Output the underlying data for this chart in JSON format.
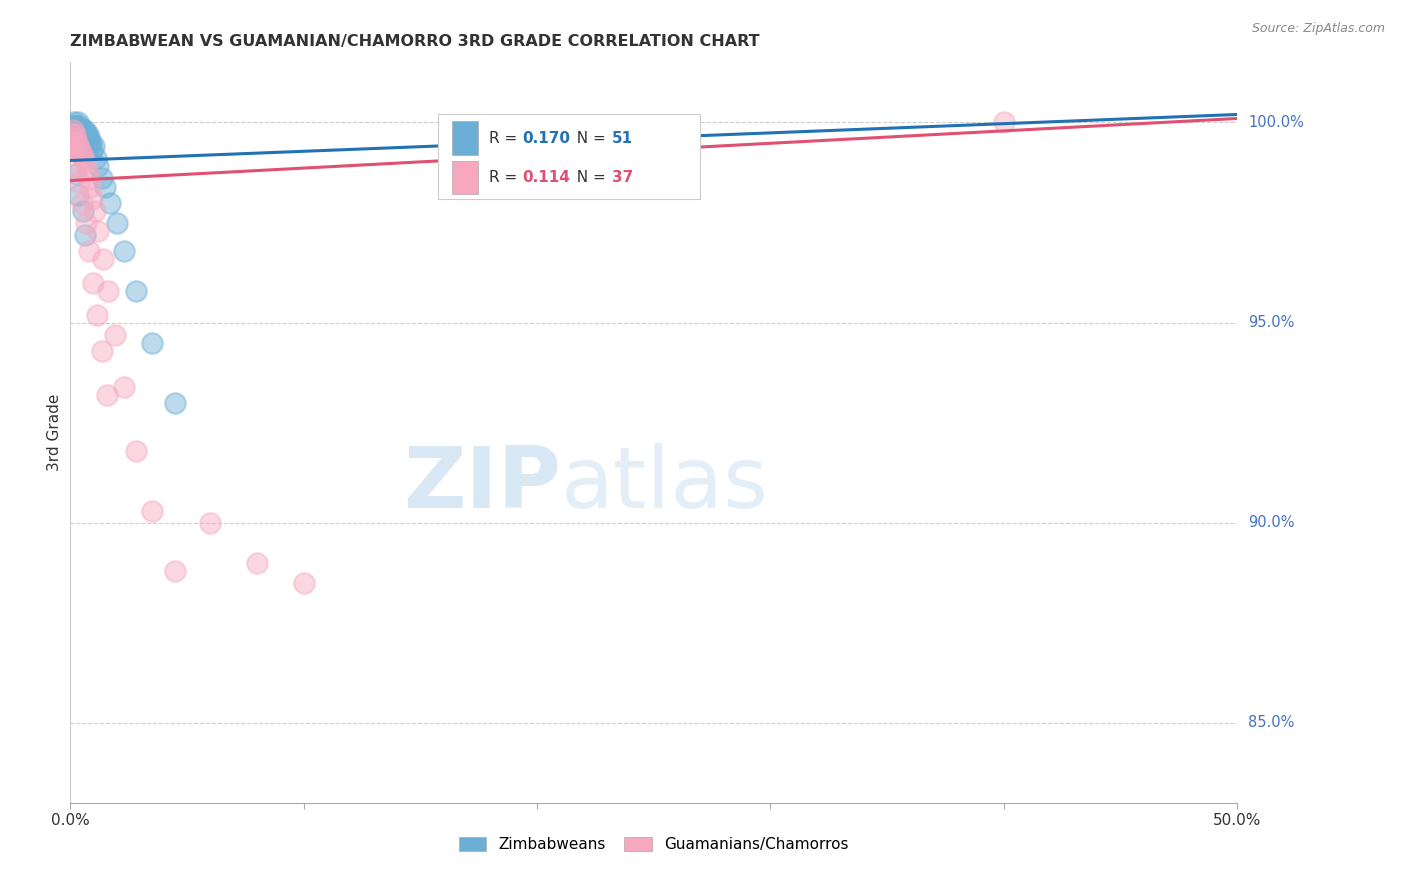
{
  "title": "ZIMBABWEAN VS GUAMANIAN/CHAMORRO 3RD GRADE CORRELATION CHART",
  "source": "Source: ZipAtlas.com",
  "ylabel": "3rd Grade",
  "blue_label": "Zimbabweans",
  "pink_label": "Guamanians/Chamorros",
  "blue_R": 0.17,
  "blue_N": 51,
  "pink_R": 0.114,
  "pink_N": 37,
  "blue_color": "#6baed6",
  "pink_color": "#f7a8bf",
  "blue_line_color": "#2171b5",
  "pink_line_color": "#e05070",
  "xmin": 0.0,
  "xmax": 50.0,
  "ymin": 83.0,
  "ymax": 101.5,
  "right_yticks": [
    85.0,
    90.0,
    95.0,
    100.0
  ],
  "watermark_zip": "ZIP",
  "watermark_atlas": "atlas",
  "background_color": "#ffffff",
  "grid_color": "#cccccc",
  "blue_scatter_x": [
    0.05,
    0.08,
    0.1,
    0.12,
    0.14,
    0.16,
    0.18,
    0.2,
    0.22,
    0.25,
    0.28,
    0.3,
    0.33,
    0.35,
    0.38,
    0.4,
    0.43,
    0.45,
    0.48,
    0.5,
    0.53,
    0.55,
    0.58,
    0.6,
    0.63,
    0.65,
    0.68,
    0.7,
    0.73,
    0.75,
    0.78,
    0.8,
    0.85,
    0.9,
    0.95,
    1.0,
    1.1,
    1.2,
    1.35,
    1.5,
    1.7,
    2.0,
    2.3,
    2.8,
    3.5,
    4.5,
    0.15,
    0.25,
    0.35,
    0.55,
    0.65
  ],
  "blue_scatter_y": [
    99.8,
    99.9,
    99.7,
    99.8,
    99.9,
    100.0,
    99.8,
    99.7,
    99.9,
    99.8,
    99.7,
    99.9,
    99.8,
    100.0,
    99.7,
    99.8,
    99.9,
    99.7,
    99.8,
    99.6,
    99.7,
    99.8,
    99.6,
    99.7,
    99.8,
    99.6,
    99.7,
    99.5,
    99.6,
    99.7,
    99.5,
    99.6,
    99.4,
    99.5,
    99.3,
    99.4,
    99.1,
    98.9,
    98.6,
    98.4,
    98.0,
    97.5,
    96.8,
    95.8,
    94.5,
    93.0,
    99.3,
    98.7,
    98.2,
    97.8,
    97.2
  ],
  "pink_scatter_x": [
    0.08,
    0.12,
    0.18,
    0.22,
    0.28,
    0.35,
    0.42,
    0.48,
    0.55,
    0.62,
    0.7,
    0.78,
    0.85,
    0.95,
    1.05,
    1.2,
    1.4,
    1.6,
    1.9,
    2.3,
    2.8,
    3.5,
    4.5,
    6.0,
    8.0,
    10.0,
    40.0,
    0.15,
    0.25,
    0.38,
    0.52,
    0.68,
    0.82,
    0.98,
    1.15,
    1.35,
    1.58
  ],
  "pink_scatter_y": [
    99.7,
    99.8,
    99.6,
    99.7,
    99.5,
    99.4,
    99.3,
    99.2,
    99.1,
    99.0,
    98.8,
    98.6,
    98.4,
    98.1,
    97.8,
    97.3,
    96.6,
    95.8,
    94.7,
    93.4,
    91.8,
    90.3,
    88.8,
    90.0,
    89.0,
    88.5,
    100.0,
    99.3,
    98.9,
    98.5,
    98.0,
    97.5,
    96.8,
    96.0,
    95.2,
    94.3,
    93.2
  ],
  "blue_line_x": [
    0.0,
    50.0
  ],
  "blue_line_y": [
    99.05,
    100.2
  ],
  "pink_line_x": [
    0.0,
    50.0
  ],
  "pink_line_y": [
    98.55,
    100.1
  ]
}
